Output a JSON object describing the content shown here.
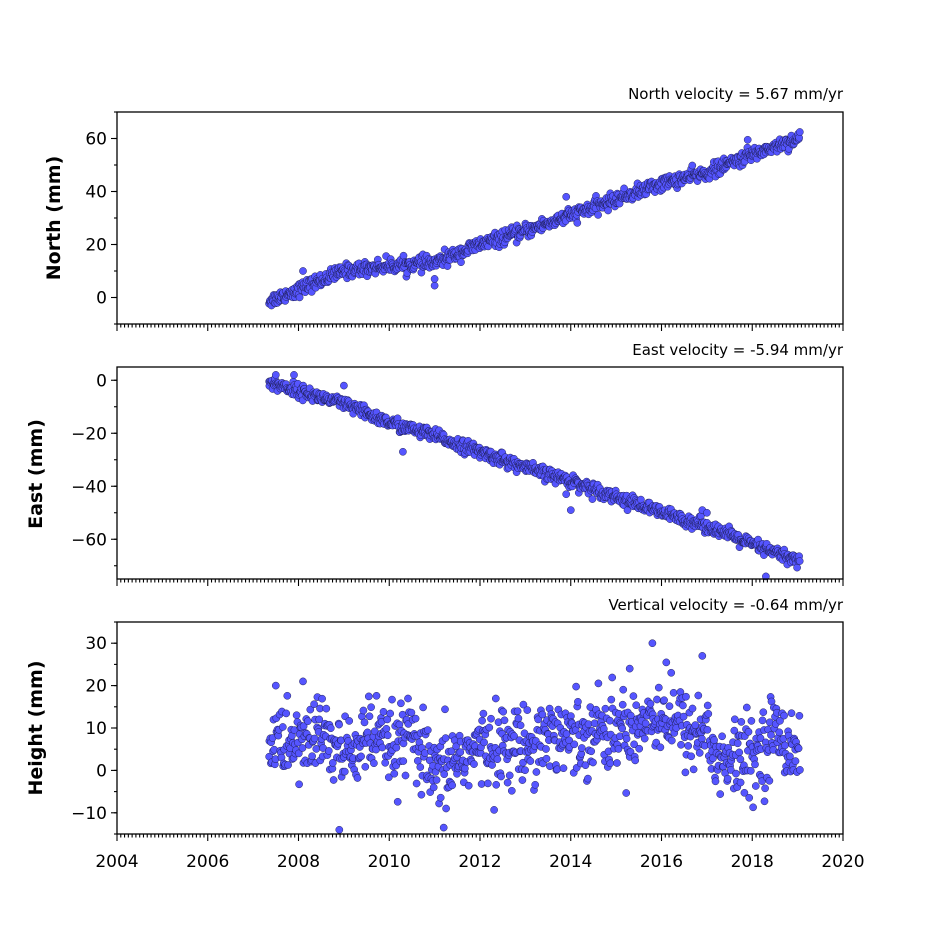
{
  "chart_data": [
    {
      "type": "scatter",
      "title": "North velocity = 5.67 mm/yr",
      "ylabel": "North (mm)",
      "xlim": [
        2004,
        2020
      ],
      "ylim": [
        -10,
        70
      ],
      "yticks": [
        0,
        20,
        40,
        60
      ],
      "ytick_labels": [
        "0",
        "20",
        "40",
        "60"
      ],
      "start": 2007.35,
      "end": 2019.05,
      "velocity": 5.67,
      "offset": -0.5,
      "noise": 1.3,
      "series": [
        {
          "x": [
            2007.4,
            2008.0,
            2009.0,
            2010.0,
            2011.0,
            2012.0,
            2013.0,
            2014.0,
            2015.0,
            2016.0,
            2017.0,
            2018.0,
            2019.0
          ],
          "y": [
            -1,
            3,
            10,
            12,
            13,
            20,
            25,
            31,
            37,
            43,
            47,
            54,
            60
          ]
        }
      ],
      "outliers": [
        [
          2008.1,
          10
        ],
        [
          2011.0,
          4.5
        ],
        [
          2011.0,
          7
        ],
        [
          2013.9,
          38
        ],
        [
          2017.9,
          59.5
        ]
      ],
      "marker_color": "#5555ff"
    },
    {
      "type": "scatter",
      "title": "East velocity = -5.94 mm/yr",
      "ylabel": "East (mm)",
      "xlim": [
        2004,
        2020
      ],
      "ylim": [
        -75,
        5
      ],
      "yticks": [
        0,
        -20,
        -40,
        -60
      ],
      "ytick_labels": [
        "0",
        "−20",
        "−40",
        "−60"
      ],
      "start": 2007.35,
      "end": 2019.05,
      "velocity": -5.94,
      "offset": 0,
      "noise": 1.2,
      "series": [
        {
          "x": [
            2007.4,
            2008.0,
            2009.0,
            2010.0,
            2011.0,
            2012.0,
            2013.0,
            2014.0,
            2015.0,
            2016.0,
            2017.0,
            2018.0,
            2019.0
          ],
          "y": [
            -1,
            -4,
            -9,
            -16,
            -21,
            -27,
            -33,
            -38,
            -44,
            -50,
            -55,
            -62,
            -68
          ]
        }
      ],
      "outliers": [
        [
          2007.5,
          2
        ],
        [
          2007.9,
          2
        ],
        [
          2009.0,
          -2
        ],
        [
          2010.3,
          -27
        ],
        [
          2013.9,
          -43
        ],
        [
          2014.0,
          -49
        ],
        [
          2016.9,
          -49
        ],
        [
          2017.0,
          -50
        ],
        [
          2018.3,
          -74
        ]
      ],
      "marker_color": "#5555ff"
    },
    {
      "type": "scatter",
      "title": "Vertical velocity = -0.64 mm/yr",
      "ylabel": "Height (mm)",
      "xlim": [
        2004,
        2020
      ],
      "ylim": [
        -15,
        35
      ],
      "yticks": [
        -10,
        0,
        10,
        20,
        30
      ],
      "ytick_labels": [
        "−10",
        "0",
        "10",
        "20",
        "30"
      ],
      "xticks": [
        2004,
        2006,
        2008,
        2010,
        2012,
        2014,
        2016,
        2018,
        2020
      ],
      "xtick_labels": [
        "2004",
        "2006",
        "2008",
        "2010",
        "2012",
        "2014",
        "2016",
        "2018",
        "2020"
      ],
      "start": 2007.35,
      "end": 2019.05,
      "velocity": -0.64,
      "noise": 4.5,
      "series": [
        {
          "x": [
            2007.35,
            2008.0,
            2008.5,
            2009.0,
            2009.5,
            2010.0,
            2010.5,
            2011.0,
            2011.5,
            2012.0,
            2012.5,
            2013.0,
            2013.5,
            2014.0,
            2014.5,
            2015.0,
            2015.5,
            2016.0,
            2016.5,
            2017.0,
            2017.3,
            2017.7,
            2018.0,
            2018.5,
            2019.05
          ],
          "y": [
            7,
            6,
            9,
            3,
            8,
            5,
            8,
            -2,
            3,
            5,
            6,
            6,
            9,
            8,
            10,
            9,
            11,
            14,
            10,
            9,
            1,
            3,
            3,
            9,
            5
          ]
        }
      ],
      "outliers": [
        [
          2007.5,
          20
        ],
        [
          2008.1,
          21
        ],
        [
          2008.9,
          -14
        ],
        [
          2011.2,
          -13.5
        ],
        [
          2015.8,
          30
        ],
        [
          2016.9,
          27
        ],
        [
          2015.3,
          24
        ]
      ],
      "marker_color": "#5555ff"
    }
  ]
}
